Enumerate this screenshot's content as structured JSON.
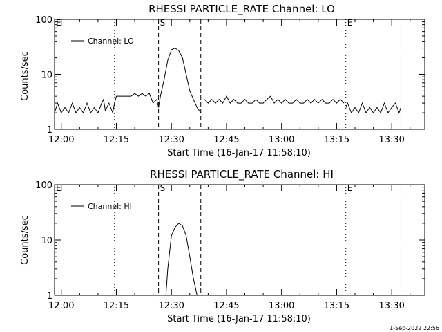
{
  "footer_timestamp": "1-Sep-2022 22:56",
  "chart_data": [
    {
      "type": "line",
      "title": "RHESSI PARTICLE_RATE Channel: LO",
      "xlabel": "Start Time (16-Jan-17 11:58:10)",
      "ylabel": "Counts/sec",
      "yscale": "log",
      "ylim": [
        1,
        100
      ],
      "xlim": [
        "11:58:10",
        "13:39:00"
      ],
      "x_ticks": [
        "12:00",
        "12:15",
        "12:30",
        "12:45",
        "13:00",
        "13:15",
        "13:30"
      ],
      "y_ticks": [
        "1",
        "10",
        "100"
      ],
      "legend": {
        "label": "Channel: LO",
        "position": "top-left"
      },
      "markers": [
        {
          "label": "E",
          "time": "11:58:10",
          "style": "dotted"
        },
        {
          "label": "",
          "time": "12:14:30",
          "style": "dotted"
        },
        {
          "label": "S",
          "time": "12:26:30",
          "style": "dashed"
        },
        {
          "label": "",
          "time": "12:38:00",
          "style": "dashed"
        },
        {
          "label": "E",
          "time": "13:17:30",
          "style": "dotted"
        },
        {
          "label": "",
          "time": "13:32:30",
          "style": "dotted"
        }
      ],
      "series": [
        {
          "name": "Channel: LO",
          "segments": [
            {
              "x": [
                "11:58:10",
                "11:59:00",
                "12:00:00",
                "12:01:00",
                "12:02:00",
                "12:03:00",
                "12:04:00",
                "12:05:00",
                "12:06:00",
                "12:07:00",
                "12:08:00",
                "12:09:00",
                "12:10:00",
                "12:11:00",
                "12:11:30",
                "12:12:00",
                "12:13:00",
                "12:14:00",
                "12:14:30",
                "12:15:00",
                "12:17:00",
                "12:19:00",
                "12:20:00",
                "12:21:00",
                "12:22:00",
                "12:23:00",
                "12:24:00",
                "12:25:00",
                "12:26:00",
                "12:26:30",
                "12:27:00",
                "12:28:00",
                "12:29:00",
                "12:30:00",
                "12:31:00",
                "12:32:00",
                "12:33:00",
                "12:34:00",
                "12:35:00",
                "12:36:00",
                "12:37:00",
                "12:38:00"
              ],
              "y": [
                2,
                3,
                2,
                2.5,
                2,
                3,
                2,
                2.5,
                2,
                3,
                2,
                2.5,
                2,
                3,
                3.5,
                2.2,
                3,
                2,
                3,
                4,
                4,
                4,
                4.5,
                4,
                4.5,
                4,
                4.5,
                3,
                3.5,
                2.5,
                4,
                8,
                18,
                28,
                30,
                27,
                20,
                10,
                5,
                3.5,
                2.5,
                2
              ]
            },
            {
              "x": [
                "12:39:00",
                "12:40:00",
                "12:41:00",
                "12:42:00",
                "12:43:00",
                "12:44:00",
                "12:45:00",
                "12:46:00",
                "12:47:00",
                "12:48:00",
                "12:49:00",
                "12:50:00",
                "12:51:00",
                "12:52:00",
                "12:53:00",
                "12:54:00",
                "12:55:00",
                "12:56:00",
                "12:57:00",
                "12:58:00",
                "12:59:00",
                "13:00:00",
                "13:01:00",
                "13:02:00",
                "13:03:00",
                "13:04:00",
                "13:05:00",
                "13:06:00",
                "13:07:00",
                "13:08:00",
                "13:09:00",
                "13:10:00",
                "13:11:00",
                "13:12:00",
                "13:13:00",
                "13:14:00",
                "13:15:00",
                "13:16:00",
                "13:17:00"
              ],
              "y": [
                3.5,
                3,
                3.5,
                3,
                3.5,
                3,
                4,
                3,
                3.5,
                3,
                3,
                3.5,
                3,
                3,
                3.5,
                3,
                3,
                3.5,
                4,
                3,
                3.5,
                3,
                3.5,
                3,
                3,
                3.5,
                3,
                3,
                3.5,
                3,
                3.5,
                3,
                3.5,
                3,
                3,
                3.5,
                3,
                3.5,
                3
              ]
            },
            {
              "x": [
                "13:17:30",
                "13:18:00",
                "13:19:00",
                "13:20:00",
                "13:21:00",
                "13:22:00",
                "13:23:00",
                "13:24:00",
                "13:25:00",
                "13:26:00",
                "13:27:00",
                "13:28:00",
                "13:29:00",
                "13:30:00",
                "13:31:00",
                "13:32:00",
                "13:32:30"
              ],
              "y": [
                2.5,
                3,
                2,
                2.5,
                2,
                3,
                2,
                2.5,
                2,
                2.5,
                2,
                3,
                2,
                2.5,
                3,
                2,
                2.5
              ]
            }
          ]
        }
      ]
    },
    {
      "type": "line",
      "title": "RHESSI PARTICLE_RATE Channel: HI",
      "xlabel": "Start Time (16-Jan-17 11:58:10)",
      "ylabel": "Counts/sec",
      "yscale": "log",
      "ylim": [
        1,
        100
      ],
      "xlim": [
        "11:58:10",
        "13:39:00"
      ],
      "x_ticks": [
        "12:00",
        "12:15",
        "12:30",
        "12:45",
        "13:00",
        "13:15",
        "13:30"
      ],
      "y_ticks": [
        "1",
        "10",
        "100"
      ],
      "legend": {
        "label": "Channel: HI",
        "position": "top-left"
      },
      "markers": [
        {
          "label": "E",
          "time": "11:58:10",
          "style": "dotted"
        },
        {
          "label": "",
          "time": "12:14:30",
          "style": "dotted"
        },
        {
          "label": "S",
          "time": "12:26:30",
          "style": "dashed"
        },
        {
          "label": "",
          "time": "12:38:00",
          "style": "dashed"
        },
        {
          "label": "E",
          "time": "13:17:30",
          "style": "dotted"
        },
        {
          "label": "",
          "time": "13:32:30",
          "style": "dotted"
        }
      ],
      "series": [
        {
          "name": "Channel: HI",
          "segments": [
            {
              "x": [
                "12:28:30",
                "12:29:00",
                "12:30:00",
                "12:31:00",
                "12:32:00",
                "12:33:00",
                "12:34:00",
                "12:35:00",
                "12:36:00",
                "12:37:00"
              ],
              "y": [
                1,
                3,
                12,
                17,
                20,
                18,
                12,
                5,
                2,
                1
              ]
            }
          ]
        }
      ]
    }
  ]
}
